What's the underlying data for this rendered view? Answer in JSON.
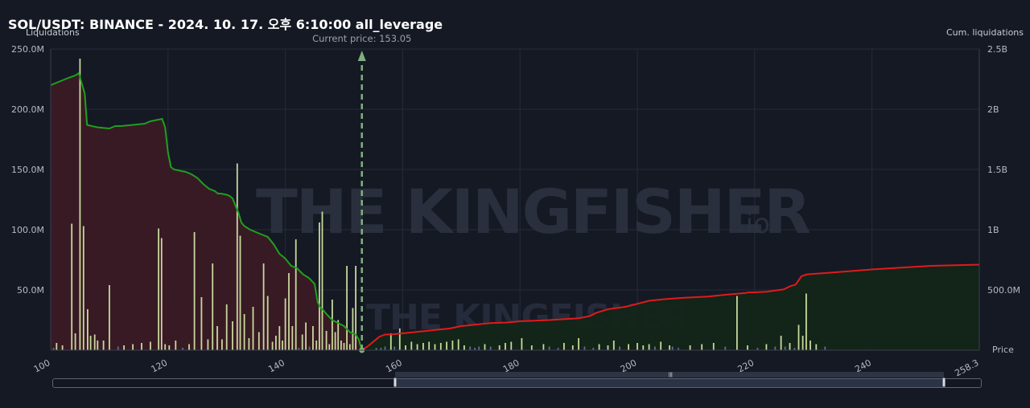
{
  "header": {
    "title": "SOL/USDT: BINANCE - 2024. 10. 17. 오후 6:10:00 all_leverage",
    "left_axis_title": "Liquidations",
    "right_axis_title": "Cum. liquidations",
    "price_axis_title": "Price",
    "current_price_label": "Current price: 153.05"
  },
  "watermark": {
    "text": "THE KINGFISHER",
    "suffix": ".io"
  },
  "colors": {
    "background": "#151924",
    "long_cum_line": "#1f9f1f",
    "long_cum_fill": "#3a1a26",
    "short_cum_line": "#e01b1b",
    "short_cum_fill": "#132519",
    "bar": "#c8d89a",
    "current_price_line": "#7fb07f"
  },
  "chart_data": {
    "type": "bar",
    "x_range": [
      100,
      258.3
    ],
    "x_ticks": [
      "100",
      "120",
      "140",
      "160",
      "180",
      "200",
      "220",
      "240",
      "258.3"
    ],
    "left_axis": {
      "label": "Liquidations",
      "range": [
        0,
        250
      ],
      "unit": "M",
      "ticks": [
        "250.0M",
        "200.0M",
        "150.0M",
        "100.0M",
        "50.0M"
      ]
    },
    "right_axis": {
      "label": "Cum. liquidations",
      "range": [
        0,
        2500
      ],
      "unit": "M",
      "ticks": [
        "2.5B",
        "2B",
        "1.5B",
        "1B",
        "500.0M"
      ]
    },
    "current_price": 153.05,
    "liquidation_bars": {
      "price": [
        100.5,
        101,
        102,
        103.6,
        104.2,
        105,
        105.6,
        106.3,
        106.8,
        107.5,
        108,
        109,
        110,
        111.5,
        112.5,
        114,
        115.5,
        117,
        118.4,
        118.9,
        119.5,
        120.2,
        121.3,
        122.5,
        123.6,
        124.5,
        125.7,
        126.8,
        127.6,
        128.4,
        129.2,
        130,
        131,
        131.8,
        132.3,
        133,
        133.8,
        134.5,
        135.5,
        136.3,
        137,
        137.8,
        138.4,
        139,
        139.5,
        140,
        140.6,
        141.2,
        141.8,
        142.3,
        142.9,
        143.5,
        144.1,
        144.7,
        145.3,
        145.8,
        146.3,
        147,
        147.5,
        148,
        148.5,
        149,
        149.5,
        150,
        150.5,
        151,
        151.5,
        152,
        155.5,
        156.3,
        157,
        158,
        158.6,
        159.5,
        160.5,
        161.5,
        162.5,
        163.5,
        164.5,
        165.5,
        166.5,
        167.5,
        168.5,
        169.5,
        170.5,
        171.5,
        172.3,
        173,
        174,
        175,
        176.5,
        177.5,
        178.5,
        180.3,
        182,
        184,
        185,
        186.5,
        187.5,
        189,
        190,
        191,
        192.5,
        193.5,
        195,
        196,
        197,
        198.5,
        200,
        201,
        202,
        203,
        204,
        205.5,
        206,
        207,
        209,
        211,
        213,
        215,
        217,
        218.8,
        220.5,
        222,
        223.5,
        224.5,
        225.2,
        226,
        226.8,
        227.5,
        228.2,
        228.8,
        229.5,
        230.5,
        232
      ],
      "value": [
        2,
        6,
        4,
        105,
        14,
        242,
        103,
        34,
        12,
        13,
        8,
        8,
        54,
        3,
        4,
        5,
        6,
        7,
        101,
        93,
        5,
        4,
        8,
        2,
        5,
        98,
        44,
        9,
        72,
        20,
        9,
        38,
        24,
        155,
        95,
        30,
        10,
        36,
        15,
        72,
        45,
        7,
        12,
        20,
        8,
        43,
        64,
        20,
        92,
        2,
        13,
        23,
        3,
        20,
        8,
        106,
        115,
        16,
        5,
        42,
        15,
        25,
        8,
        6,
        70,
        5,
        35,
        70,
        2,
        2,
        3,
        14,
        3,
        18,
        4,
        7,
        5,
        6,
        7,
        5,
        6,
        7,
        8,
        9,
        4,
        3,
        2,
        3,
        5,
        3,
        4,
        6,
        7,
        10,
        4,
        5,
        3,
        2,
        6,
        4,
        10,
        3,
        2,
        5,
        4,
        8,
        3,
        5,
        6,
        4,
        5,
        3,
        7,
        4,
        3,
        2,
        4,
        5,
        6,
        3,
        45,
        4,
        2,
        5,
        3,
        12,
        3,
        6,
        2,
        21,
        12,
        47,
        8,
        5,
        3,
        2
      ]
    },
    "long_cumulative": {
      "price": [
        100,
        101,
        102,
        103,
        104.2,
        104.8,
        105.2,
        105.8,
        106.2,
        107,
        108,
        110,
        111,
        112,
        114,
        116,
        117,
        118,
        119,
        119.5,
        120,
        120.5,
        121,
        122,
        123,
        124,
        125,
        126,
        127,
        128,
        128.5,
        129,
        130,
        130.5,
        131,
        132,
        132.5,
        133,
        134,
        135,
        136,
        137,
        138,
        139,
        140,
        140.5,
        141,
        142,
        143,
        144,
        145,
        145.5,
        146,
        146.5,
        147,
        148,
        149,
        150,
        151,
        152,
        152.5,
        153.05
      ],
      "cum": [
        2200,
        2220,
        2240,
        2260,
        2280,
        2300,
        2230,
        2130,
        1870,
        1860,
        1850,
        1840,
        1860,
        1860,
        1870,
        1880,
        1900,
        1910,
        1920,
        1850,
        1640,
        1520,
        1500,
        1490,
        1480,
        1460,
        1430,
        1380,
        1340,
        1320,
        1300,
        1300,
        1290,
        1280,
        1260,
        1140,
        1060,
        1030,
        1000,
        980,
        960,
        940,
        880,
        800,
        760,
        730,
        700,
        680,
        630,
        600,
        550,
        400,
        350,
        330,
        300,
        250,
        225,
        200,
        150,
        130,
        90,
        0
      ]
    },
    "short_cumulative": {
      "price": [
        153.05,
        154,
        155,
        156,
        157,
        158,
        160,
        165,
        168,
        170,
        175,
        178,
        180,
        185,
        190,
        192,
        193,
        195,
        198,
        200,
        202,
        205,
        208,
        212,
        215,
        218.5,
        219,
        220,
        222,
        225,
        226,
        227,
        227.5,
        228,
        229,
        232,
        240,
        250,
        258.3
      ],
      "cum": [
        0,
        30,
        70,
        110,
        130,
        130,
        140,
        165,
        180,
        200,
        225,
        230,
        240,
        250,
        265,
        285,
        310,
        340,
        360,
        385,
        410,
        425,
        435,
        445,
        460,
        475,
        480,
        480,
        485,
        505,
        530,
        545,
        580,
        615,
        630,
        640,
        670,
        700,
        710
      ]
    }
  }
}
